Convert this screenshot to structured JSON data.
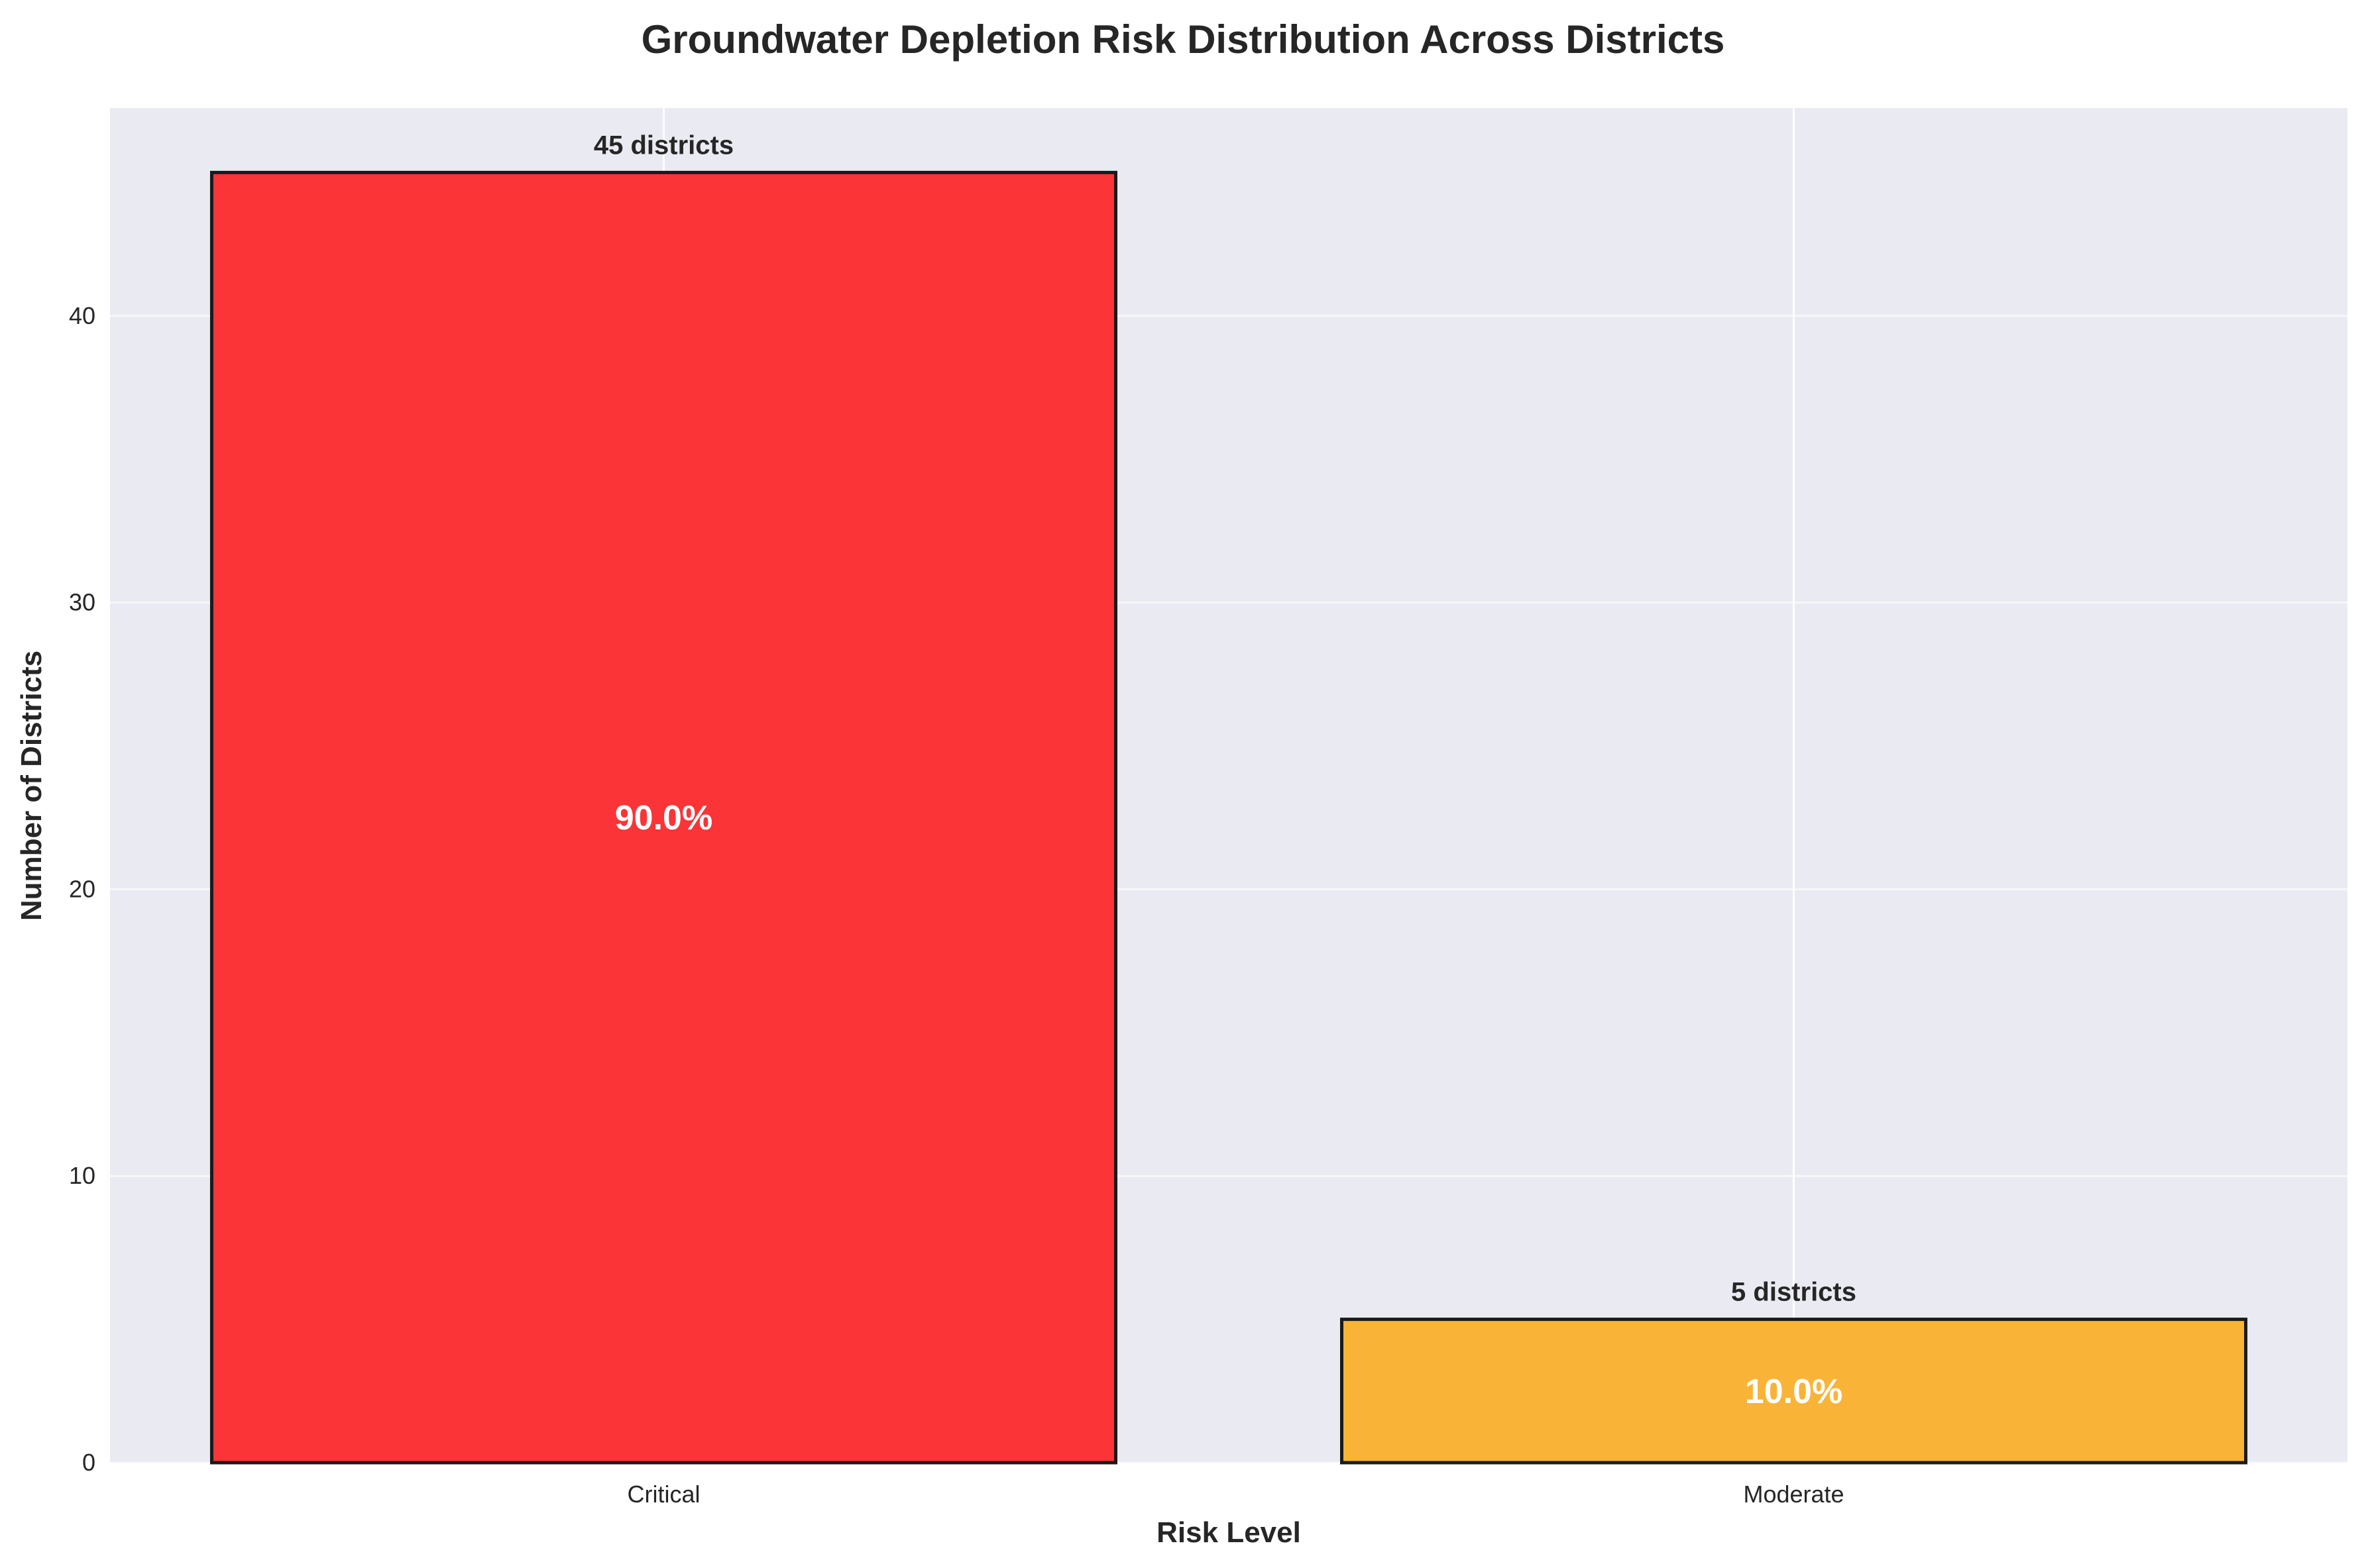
{
  "chart_data": {
    "type": "bar",
    "title": "Groundwater Depletion Risk Distribution Across Districts",
    "xlabel": "Risk Level",
    "ylabel": "Number of Districts",
    "categories": [
      "Critical",
      "Moderate"
    ],
    "values": [
      45,
      5
    ],
    "count_labels": [
      "45 districts",
      "5 districts"
    ],
    "percent_labels": [
      "90.0%",
      "10.0%"
    ],
    "bar_colors": [
      "#fa3033",
      "#f9b233"
    ],
    "edge_color": "#1a1a1a",
    "background_color": "#eaeaf2",
    "grid": true,
    "ylim": [
      0,
      47.25
    ],
    "yticks": [
      0,
      10,
      20,
      30,
      40
    ]
  }
}
